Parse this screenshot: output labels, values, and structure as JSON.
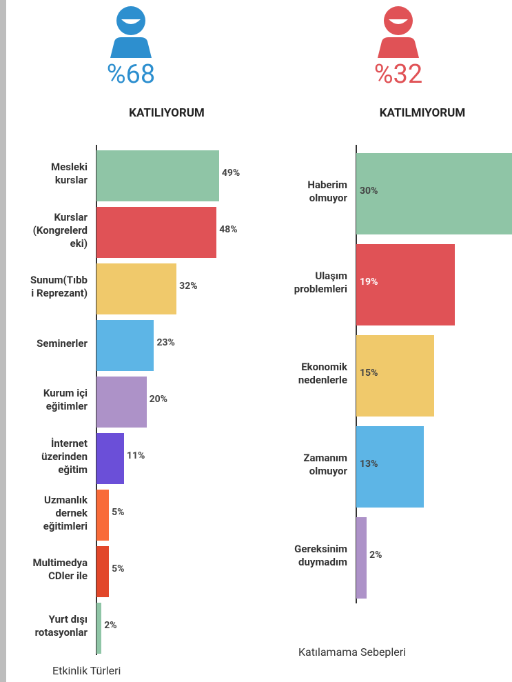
{
  "panels": [
    {
      "percent": "%68",
      "label": "KATILIYORUM",
      "color": "#2d8fcf"
    },
    {
      "percent": "%32",
      "label": "KATILMIYORUM",
      "color": "#e05256"
    }
  ],
  "chart_data": [
    {
      "type": "bar",
      "orientation": "horizontal",
      "axis_title": "Etkinlik Türleri",
      "categories": [
        "Mesleki\nkurslar",
        "Kurslar\n(Kongrelerd\neki)",
        "Sunum(Tıbb\ni Reprezant)",
        "Seminerler",
        "Kurum içi\neğitimler",
        "İnternet\nüzerinden\neğitim",
        "Uzmanlık\ndernek\neğitimleri",
        "Multimedya\nCDler ile",
        "Yurt dışı\nrotasyonlar"
      ],
      "values": [
        49,
        48,
        32,
        23,
        20,
        11,
        5,
        5,
        2
      ],
      "value_labels": [
        "49%",
        "48%",
        "32%",
        "23%",
        "20%",
        "11%",
        "5%",
        "5%",
        "2%"
      ],
      "colors": [
        "#8fc5a6",
        "#e05256",
        "#f0c96b",
        "#5db5e6",
        "#ad92c8",
        "#6b4fd8",
        "#f96b39",
        "#e2472a",
        "#8fc5a6"
      ],
      "xlim": [
        0,
        100
      ]
    },
    {
      "type": "bar",
      "orientation": "horizontal",
      "axis_title": "Katılamama Sebepleri",
      "categories": [
        "Haberim\nolmuyor",
        "Ulaşım\nproblemleri",
        "Ekonomik\nnedenlerle",
        "Zamanım\nolmuyor",
        "Gereksinim\nduymadım"
      ],
      "values": [
        30,
        19,
        15,
        13,
        2
      ],
      "value_labels": [
        "30%",
        "19%",
        "15%",
        "13%",
        "2%"
      ],
      "colors": [
        "#8fc5a6",
        "#e05256",
        "#f0c96b",
        "#5db5e6",
        "#ad92c8"
      ],
      "label_colors": [
        "#444",
        "#fff",
        "#444",
        "#444",
        "#444"
      ],
      "xlim": [
        0,
        100
      ]
    }
  ]
}
